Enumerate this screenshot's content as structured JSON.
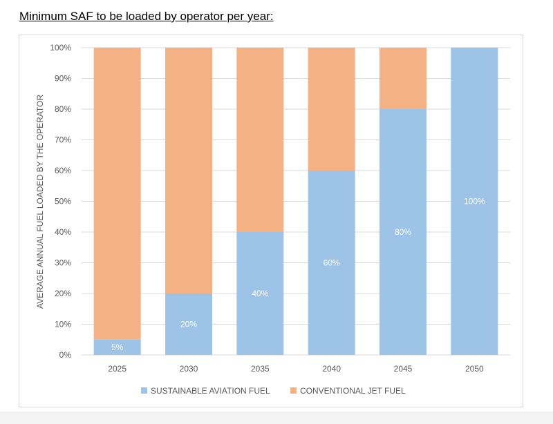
{
  "heading": "Minimum SAF to be loaded by operator per year:",
  "chart_data": {
    "type": "bar",
    "stacked": true,
    "categories": [
      "2025",
      "2030",
      "2035",
      "2040",
      "2045",
      "2050"
    ],
    "series": [
      {
        "name": "SUSTAINABLE AVIATION FUEL",
        "values": [
          5,
          20,
          40,
          60,
          80,
          100
        ],
        "labels": [
          "5%",
          "20%",
          "40%",
          "60%",
          "80%",
          "100%"
        ],
        "color": "#9dc3e6"
      },
      {
        "name": "CONVENTIONAL JET FUEL",
        "values": [
          95,
          80,
          60,
          40,
          20,
          0
        ],
        "color": "#f4b183"
      }
    ],
    "ylabel": "AVERAGE ANNUAL FUEL LOADED BY THE OPERATOR",
    "ylim": [
      0,
      100
    ],
    "yticks": [
      "0%",
      "10%",
      "20%",
      "30%",
      "40%",
      "50%",
      "60%",
      "70%",
      "80%",
      "90%",
      "100%"
    ],
    "grid": true,
    "legend": "bottom",
    "gridColor": "#d9d9d9",
    "textColor": "#595959"
  }
}
